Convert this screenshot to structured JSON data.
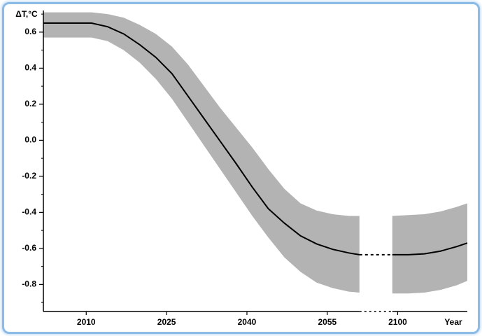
{
  "chart_data": {
    "type": "band-line",
    "y_label": "ΔT,°C",
    "x_label": "Year",
    "x": [
      2002,
      2005,
      2008,
      2011,
      2014,
      2017,
      2020,
      2023,
      2026,
      2029,
      2032,
      2035,
      2038,
      2041,
      2044,
      2047,
      2050,
      2053,
      2056,
      2059,
      2061,
      2099,
      2102,
      2105,
      2108,
      2111,
      2113
    ],
    "values": [
      0.65,
      0.65,
      0.65,
      0.65,
      0.63,
      0.59,
      0.53,
      0.46,
      0.37,
      0.245,
      0.12,
      -0.005,
      -0.13,
      -0.26,
      -0.38,
      -0.46,
      -0.53,
      -0.575,
      -0.605,
      -0.625,
      -0.635,
      -0.635,
      -0.635,
      -0.63,
      -0.615,
      -0.59,
      -0.57
    ],
    "upper": [
      0.71,
      0.71,
      0.71,
      0.71,
      0.7,
      0.68,
      0.64,
      0.59,
      0.52,
      0.42,
      0.3,
      0.18,
      0.07,
      -0.04,
      -0.16,
      -0.27,
      -0.35,
      -0.39,
      -0.41,
      -0.42,
      -0.42,
      -0.42,
      -0.415,
      -0.41,
      -0.395,
      -0.37,
      -0.35
    ],
    "lower": [
      0.57,
      0.57,
      0.57,
      0.57,
      0.55,
      0.5,
      0.43,
      0.34,
      0.23,
      0.1,
      -0.03,
      -0.16,
      -0.29,
      -0.42,
      -0.54,
      -0.65,
      -0.73,
      -0.79,
      -0.82,
      -0.84,
      -0.845,
      -0.85,
      -0.85,
      -0.845,
      -0.83,
      -0.805,
      -0.78
    ],
    "color": "#000000",
    "band_color": "#b3b3b3",
    "xlim": [
      2002,
      2113
    ],
    "x_break": [
      2061,
      2099
    ],
    "xticks": [
      2010,
      2025,
      2040,
      2055,
      2100
    ],
    "ylim": [
      -0.95,
      0.72
    ],
    "yticks": [
      0.6,
      0.4,
      0.2,
      {
        "value": 0,
        "label": "0.0"
      },
      -0.2,
      -0.4,
      -0.6,
      -0.8
    ],
    "yminorticks": [
      0.7,
      0.5,
      0.3,
      0.1,
      -0.1,
      -0.3,
      -0.5,
      -0.7,
      -0.9
    ]
  }
}
